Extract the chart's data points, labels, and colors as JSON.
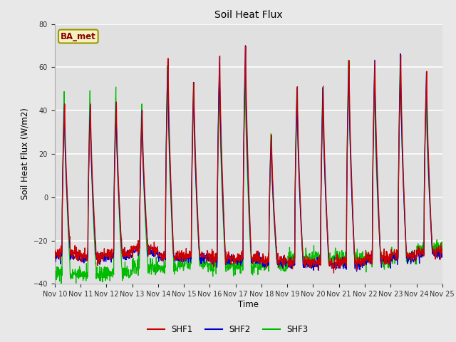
{
  "title": "Soil Heat Flux",
  "xlabel": "Time",
  "ylabel": "Soil Heat Flux (W/m2)",
  "legend_label": "BA_met",
  "series_labels": [
    "SHF1",
    "SHF2",
    "SHF3"
  ],
  "series_colors": [
    "#cc0000",
    "#0000cc",
    "#00bb00"
  ],
  "ylim": [
    -40,
    80
  ],
  "yticks": [
    -40,
    -20,
    0,
    20,
    40,
    60,
    80
  ],
  "xtick_labels": [
    "Nov 10",
    "Nov 11",
    "Nov 12",
    "Nov 13",
    "Nov 14",
    "Nov 15",
    "Nov 16",
    "Nov 17",
    "Nov 18",
    "Nov 19",
    "Nov 20",
    "Nov 21",
    "Nov 22",
    "Nov 23",
    "Nov 24",
    "Nov 25"
  ],
  "background_color": "#e8e8e8",
  "plot_bg_color": "#e0e0e0",
  "grid_color": "#ffffff",
  "legend_box_facecolor": "#f5f0c0",
  "legend_box_edgecolor": "#999900",
  "legend_text_color": "#880000",
  "n_days": 15,
  "steps_per_day": 96,
  "shf1_peaks": [
    43,
    43,
    44,
    40,
    64,
    53,
    65,
    70,
    29,
    51,
    51,
    63,
    63,
    66,
    58
  ],
  "shf2_peaks": [
    43,
    43,
    44,
    40,
    64,
    53,
    65,
    70,
    29,
    51,
    51,
    63,
    63,
    66,
    58
  ],
  "shf3_peaks": [
    49,
    49,
    51,
    43,
    61,
    53,
    57,
    59,
    29,
    50,
    50,
    63,
    54,
    66,
    49
  ],
  "shf1_nights": [
    -26,
    -27,
    -26,
    -24,
    -27,
    -27,
    -28,
    -28,
    -29,
    -30,
    -30,
    -30,
    -28,
    -27,
    -25
  ],
  "shf2_nights": [
    -27,
    -28,
    -27,
    -25,
    -28,
    -28,
    -29,
    -29,
    -30,
    -31,
    -31,
    -31,
    -29,
    -28,
    -26
  ],
  "shf3_nights": [
    -35,
    -36,
    -35,
    -32,
    -32,
    -31,
    -32,
    -32,
    -32,
    -28,
    -28,
    -28,
    -29,
    -28,
    -24
  ]
}
